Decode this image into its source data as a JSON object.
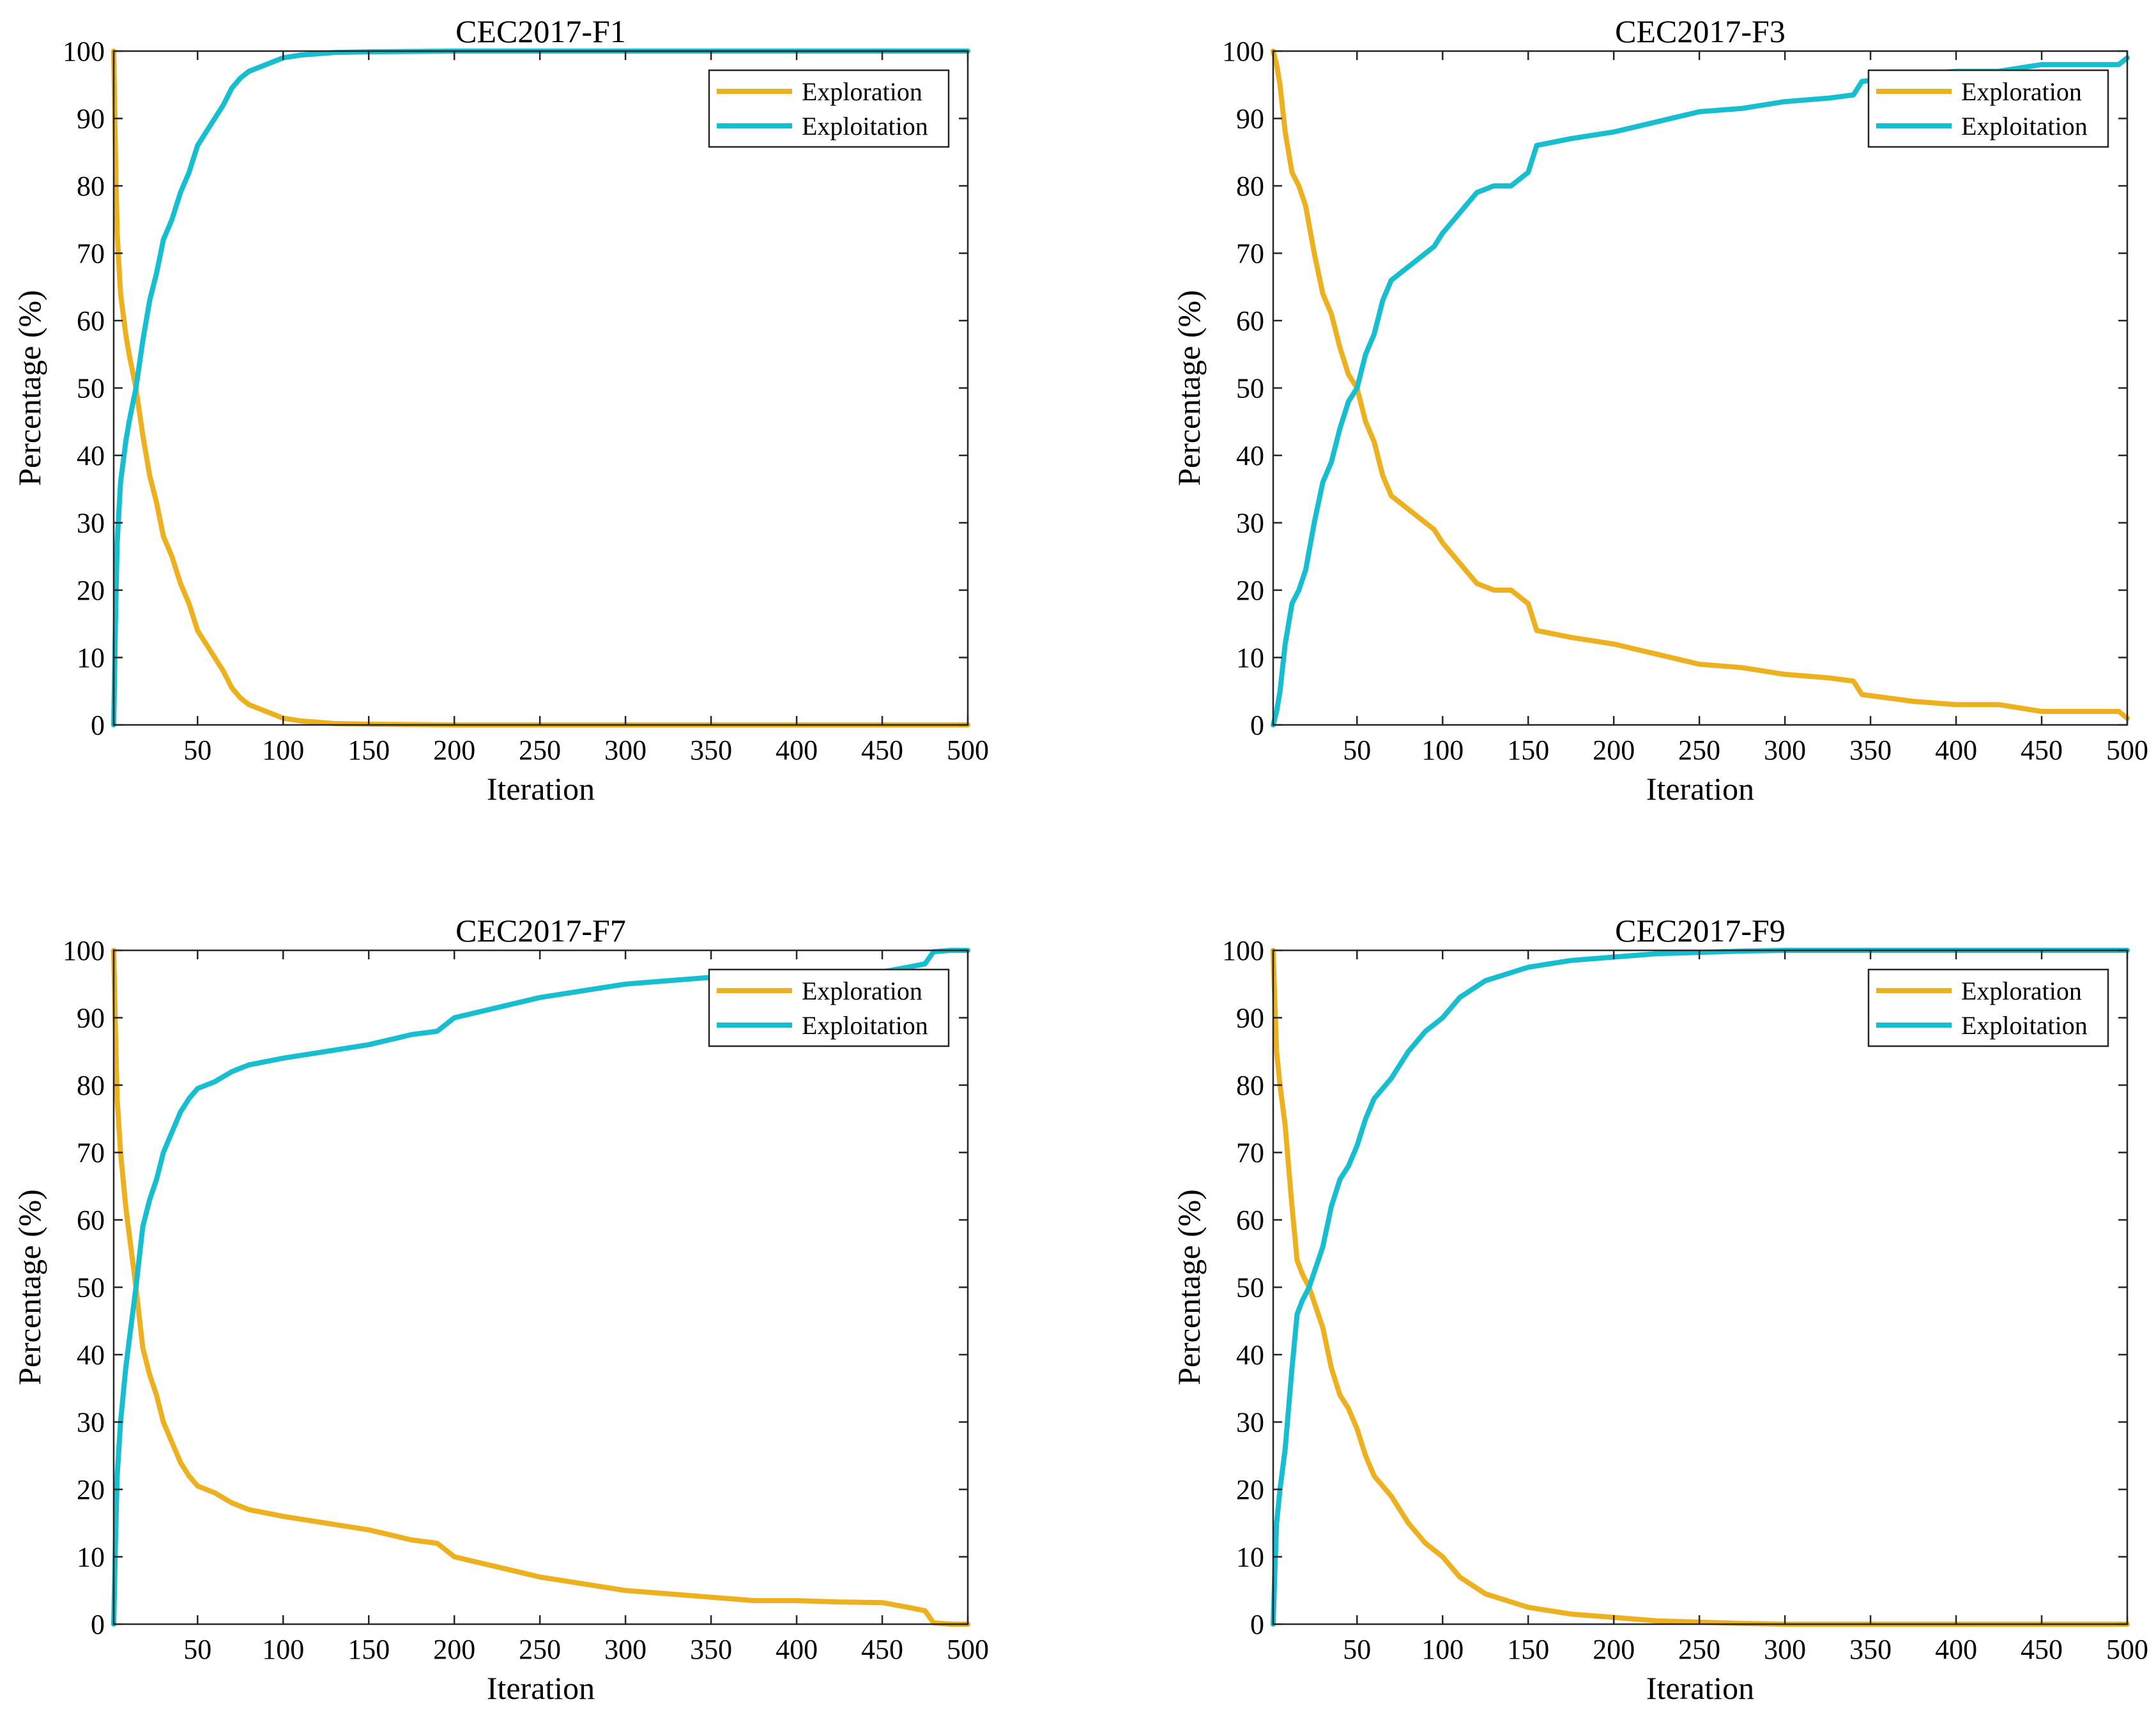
{
  "figure": {
    "colors": {
      "exploration": "#EDB120",
      "exploitation": "#17BECF",
      "axis": "#262626",
      "background": "#FFFFFF"
    }
  },
  "chart_data": [
    {
      "type": "line",
      "title": "CEC2017-F1",
      "xlabel": "Iteration",
      "ylabel": "Percentage (%)",
      "xlim": [
        1,
        500
      ],
      "ylim": [
        0,
        100
      ],
      "xticks": [
        50,
        100,
        150,
        200,
        250,
        300,
        350,
        400,
        450,
        500
      ],
      "yticks": [
        0,
        10,
        20,
        30,
        40,
        50,
        60,
        70,
        80,
        90,
        100
      ],
      "legend_location": "top-right",
      "series": [
        {
          "name": "Exploration",
          "x": [
            1,
            2,
            3,
            5,
            8,
            10,
            14,
            18,
            22,
            26,
            30,
            35,
            40,
            45,
            50,
            55,
            60,
            65,
            70,
            75,
            80,
            90,
            100,
            110,
            120,
            130,
            150,
            200,
            300,
            400,
            500
          ],
          "values": [
            100,
            85,
            73,
            64,
            58,
            55,
            50,
            43,
            37,
            33,
            28,
            25,
            21,
            18,
            14,
            12,
            10,
            8,
            5.5,
            4,
            3,
            2,
            1,
            0.6,
            0.4,
            0.2,
            0.1,
            0,
            0,
            0,
            0
          ]
        },
        {
          "name": "Exploitation",
          "x": [
            1,
            2,
            3,
            5,
            8,
            10,
            14,
            18,
            22,
            26,
            30,
            35,
            40,
            45,
            50,
            55,
            60,
            65,
            70,
            75,
            80,
            90,
            100,
            110,
            120,
            130,
            150,
            200,
            300,
            400,
            500
          ],
          "values": [
            0,
            15,
            27,
            36,
            42,
            45,
            50,
            57,
            63,
            67,
            72,
            75,
            79,
            82,
            86,
            88,
            90,
            92,
            94.5,
            96,
            97,
            98,
            99,
            99.4,
            99.6,
            99.8,
            99.9,
            100,
            100,
            100,
            100
          ]
        }
      ]
    },
    {
      "type": "line",
      "title": "CEC2017-F3",
      "xlabel": "Iteration",
      "ylabel": "Percentage (%)",
      "xlim": [
        1,
        500
      ],
      "ylim": [
        0,
        100
      ],
      "xticks": [
        50,
        100,
        150,
        200,
        250,
        300,
        350,
        400,
        450,
        500
      ],
      "yticks": [
        0,
        10,
        20,
        30,
        40,
        50,
        60,
        70,
        80,
        90,
        100
      ],
      "legend_location": "top-right",
      "series": [
        {
          "name": "Exploration",
          "x": [
            1,
            3,
            5,
            8,
            12,
            16,
            20,
            25,
            30,
            35,
            40,
            45,
            50,
            55,
            60,
            65,
            70,
            75,
            80,
            85,
            90,
            95,
            100,
            110,
            120,
            130,
            140,
            150,
            155,
            175,
            200,
            225,
            250,
            275,
            300,
            325,
            340,
            345,
            375,
            400,
            425,
            450,
            475,
            495,
            500
          ],
          "values": [
            100,
            98,
            95,
            88,
            82,
            80,
            77,
            70,
            64,
            61,
            56,
            52,
            50,
            45,
            42,
            37,
            34,
            33,
            32,
            31,
            30,
            29,
            27,
            24,
            21,
            20,
            20,
            18,
            14,
            13,
            12,
            10.5,
            9,
            8.5,
            7.5,
            7,
            6.5,
            4.5,
            3.5,
            3,
            3,
            2,
            2,
            2,
            1
          ]
        },
        {
          "name": "Exploitation",
          "x": [
            1,
            3,
            5,
            8,
            12,
            16,
            20,
            25,
            30,
            35,
            40,
            45,
            50,
            55,
            60,
            65,
            70,
            75,
            80,
            85,
            90,
            95,
            100,
            110,
            120,
            130,
            140,
            150,
            155,
            175,
            200,
            225,
            250,
            275,
            300,
            325,
            340,
            345,
            375,
            400,
            425,
            450,
            475,
            495,
            500
          ],
          "values": [
            0,
            2,
            5,
            12,
            18,
            20,
            23,
            30,
            36,
            39,
            44,
            48,
            50,
            55,
            58,
            63,
            66,
            67,
            68,
            69,
            70,
            71,
            73,
            76,
            79,
            80,
            80,
            82,
            86,
            87,
            88,
            89.5,
            91,
            91.5,
            92.5,
            93,
            93.5,
            95.5,
            96.5,
            97,
            97,
            98,
            98,
            98,
            99
          ]
        }
      ]
    },
    {
      "type": "line",
      "title": "CEC2017-F7",
      "xlabel": "Iteration",
      "ylabel": "Percentage (%)",
      "xlim": [
        1,
        500
      ],
      "ylim": [
        0,
        100
      ],
      "xticks": [
        50,
        100,
        150,
        200,
        250,
        300,
        350,
        400,
        450,
        500
      ],
      "yticks": [
        0,
        10,
        20,
        30,
        40,
        50,
        60,
        70,
        80,
        90,
        100
      ],
      "legend_location": "top-right",
      "series": [
        {
          "name": "Exploration",
          "x": [
            1,
            2,
            3,
            5,
            8,
            10,
            14,
            18,
            22,
            26,
            30,
            35,
            40,
            45,
            50,
            60,
            70,
            80,
            90,
            100,
            125,
            150,
            175,
            190,
            200,
            225,
            250,
            275,
            300,
            325,
            350,
            375,
            400,
            425,
            450,
            465,
            475,
            480,
            490,
            500
          ],
          "values": [
            100,
            88,
            78,
            70,
            62,
            58,
            50,
            41,
            37,
            34,
            30,
            27,
            24,
            22,
            20.5,
            19.5,
            18,
            17,
            16.5,
            16,
            15,
            14,
            12.5,
            12,
            10,
            8.5,
            7,
            6,
            5,
            4.5,
            4,
            3.5,
            3.5,
            3.3,
            3.2,
            2.5,
            2,
            0.2,
            0,
            0
          ]
        },
        {
          "name": "Exploitation",
          "x": [
            1,
            2,
            3,
            5,
            8,
            10,
            14,
            18,
            22,
            26,
            30,
            35,
            40,
            45,
            50,
            60,
            70,
            80,
            90,
            100,
            125,
            150,
            175,
            190,
            200,
            225,
            250,
            275,
            300,
            325,
            350,
            375,
            400,
            425,
            450,
            465,
            475,
            480,
            490,
            500
          ],
          "values": [
            0,
            12,
            22,
            30,
            38,
            42,
            50,
            59,
            63,
            66,
            70,
            73,
            76,
            78,
            79.5,
            80.5,
            82,
            83,
            83.5,
            84,
            85,
            86,
            87.5,
            88,
            90,
            91.5,
            93,
            94,
            95,
            95.5,
            96,
            96.5,
            96.5,
            96.7,
            96.8,
            97.5,
            98,
            99.8,
            100,
            100
          ]
        }
      ]
    },
    {
      "type": "line",
      "title": "CEC2017-F9",
      "xlabel": "Iteration",
      "ylabel": "Percentage (%)",
      "xlim": [
        1,
        500
      ],
      "ylim": [
        0,
        100
      ],
      "xticks": [
        50,
        100,
        150,
        200,
        250,
        300,
        350,
        400,
        450,
        500
      ],
      "yticks": [
        0,
        10,
        20,
        30,
        40,
        50,
        60,
        70,
        80,
        90,
        100
      ],
      "legend_location": "top-right",
      "series": [
        {
          "name": "Exploration",
          "x": [
            1,
            2,
            3,
            5,
            8,
            10,
            12,
            15,
            18,
            22,
            26,
            30,
            35,
            40,
            45,
            50,
            55,
            60,
            70,
            80,
            90,
            100,
            110,
            125,
            150,
            175,
            200,
            225,
            250,
            275,
            300,
            400,
            500
          ],
          "values": [
            100,
            92,
            85,
            80,
            74,
            68,
            62,
            54,
            52,
            50,
            47,
            44,
            38,
            34,
            32,
            29,
            25,
            22,
            19,
            15,
            12,
            10,
            7,
            4.5,
            2.5,
            1.5,
            1,
            0.5,
            0.3,
            0.1,
            0,
            0,
            0
          ]
        },
        {
          "name": "Exploitation",
          "x": [
            1,
            2,
            3,
            5,
            8,
            10,
            12,
            15,
            18,
            22,
            26,
            30,
            35,
            40,
            45,
            50,
            55,
            60,
            70,
            80,
            90,
            100,
            110,
            125,
            150,
            175,
            200,
            225,
            250,
            275,
            300,
            400,
            500
          ],
          "values": [
            0,
            8,
            15,
            20,
            26,
            32,
            38,
            46,
            48,
            50,
            53,
            56,
            62,
            66,
            68,
            71,
            75,
            78,
            81,
            85,
            88,
            90,
            93,
            95.5,
            97.5,
            98.5,
            99,
            99.5,
            99.7,
            99.9,
            100,
            100,
            100
          ]
        }
      ]
    }
  ]
}
